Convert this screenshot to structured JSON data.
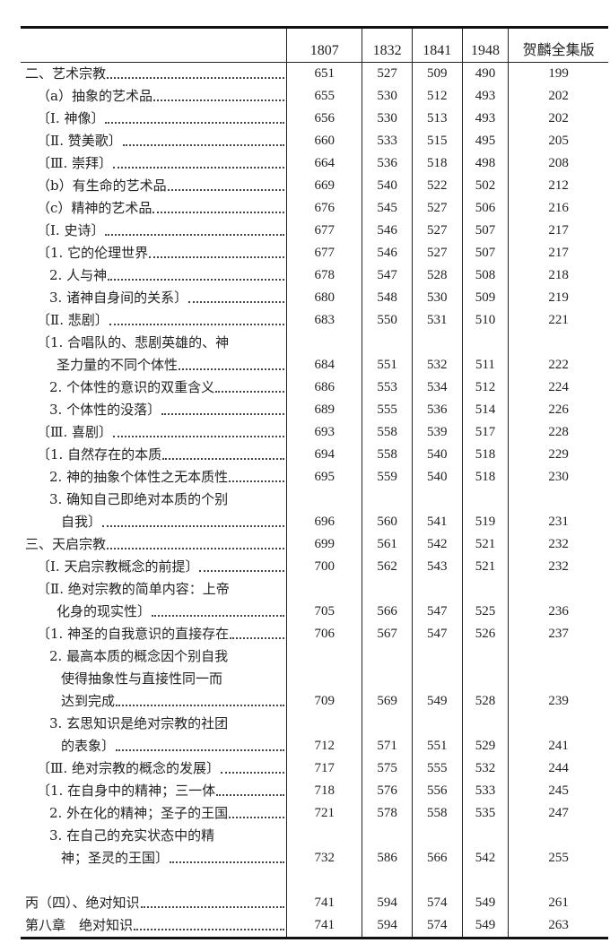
{
  "header": {
    "label_col": "",
    "columns": [
      "1807",
      "1832",
      "1841",
      "1948",
      "贺麟全集版"
    ]
  },
  "rows": [
    {
      "indent": 0,
      "lines": [
        "二、艺术宗教"
      ],
      "values": [
        "651",
        "527",
        "509",
        "490",
        "199"
      ]
    },
    {
      "indent": 1,
      "lines": [
        "（a）抽象的艺术品"
      ],
      "values": [
        "655",
        "530",
        "512",
        "493",
        "202"
      ]
    },
    {
      "indent": 1,
      "lines": [
        "〔Ⅰ. 神像〕"
      ],
      "values": [
        "656",
        "530",
        "513",
        "493",
        "202"
      ]
    },
    {
      "indent": 1,
      "lines": [
        "〔Ⅱ. 赞美歌〕"
      ],
      "values": [
        "660",
        "533",
        "515",
        "495",
        "205"
      ]
    },
    {
      "indent": 1,
      "lines": [
        "〔Ⅲ. 崇拜〕"
      ],
      "values": [
        "664",
        "536",
        "518",
        "498",
        "208"
      ]
    },
    {
      "indent": 1,
      "lines": [
        "（b）有生命的艺术品"
      ],
      "values": [
        "669",
        "540",
        "522",
        "502",
        "212"
      ]
    },
    {
      "indent": 1,
      "lines": [
        "（c）精神的艺术品"
      ],
      "values": [
        "676",
        "545",
        "527",
        "506",
        "216"
      ]
    },
    {
      "indent": 1,
      "lines": [
        "〔Ⅰ. 史诗〕"
      ],
      "values": [
        "677",
        "546",
        "527",
        "507",
        "217"
      ]
    },
    {
      "indent": 1,
      "lines": [
        "〔1. 它的伦理世界"
      ],
      "values": [
        "677",
        "546",
        "527",
        "507",
        "217"
      ]
    },
    {
      "indent": 2,
      "lines": [
        "2. 人与神"
      ],
      "values": [
        "678",
        "547",
        "528",
        "508",
        "218"
      ]
    },
    {
      "indent": 2,
      "lines": [
        "3. 诸神自身间的关系〕"
      ],
      "values": [
        "680",
        "548",
        "530",
        "509",
        "219"
      ]
    },
    {
      "indent": 1,
      "lines": [
        "〔Ⅱ. 悲剧〕"
      ],
      "values": [
        "683",
        "550",
        "531",
        "510",
        "221"
      ]
    },
    {
      "indent": 1,
      "lines": [
        "〔1. 合唱队的、悲剧英雄的、神",
        "圣力量的不同个体性"
      ],
      "values": [
        "684",
        "551",
        "532",
        "511",
        "222"
      ]
    },
    {
      "indent": 2,
      "lines": [
        "2. 个体性的意识的双重含义"
      ],
      "values": [
        "686",
        "553",
        "534",
        "512",
        "224"
      ]
    },
    {
      "indent": 2,
      "lines": [
        "3. 个体性的没落〕"
      ],
      "values": [
        "689",
        "555",
        "536",
        "514",
        "226"
      ]
    },
    {
      "indent": 1,
      "lines": [
        "〔Ⅲ. 喜剧〕"
      ],
      "values": [
        "693",
        "558",
        "539",
        "517",
        "228"
      ]
    },
    {
      "indent": 1,
      "lines": [
        "〔1. 自然存在的本质"
      ],
      "values": [
        "694",
        "558",
        "540",
        "518",
        "229"
      ]
    },
    {
      "indent": 2,
      "lines": [
        "2. 神的抽象个体性之无本质性"
      ],
      "values": [
        "695",
        "559",
        "540",
        "518",
        "230"
      ]
    },
    {
      "indent": 2,
      "lines": [
        "3. 确知自己即绝对本质的个别",
        "自我〕"
      ],
      "values": [
        "696",
        "560",
        "541",
        "519",
        "231"
      ]
    },
    {
      "indent": 0,
      "lines": [
        "三、天启宗教"
      ],
      "values": [
        "699",
        "561",
        "542",
        "521",
        "232"
      ]
    },
    {
      "indent": 1,
      "lines": [
        "〔Ⅰ. 天启宗教概念的前提〕"
      ],
      "values": [
        "700",
        "562",
        "543",
        "521",
        "232"
      ]
    },
    {
      "indent": 1,
      "lines": [
        "〔Ⅱ. 绝对宗教的简单内容：上帝",
        "化身的现实性〕"
      ],
      "values": [
        "705",
        "566",
        "547",
        "525",
        "236"
      ]
    },
    {
      "indent": 1,
      "lines": [
        "〔1. 神圣的自我意识的直接存在"
      ],
      "values": [
        "706",
        "567",
        "547",
        "526",
        "237"
      ]
    },
    {
      "indent": 2,
      "lines": [
        "2. 最高本质的概念因个别自我",
        "使得抽象性与直接性同一而",
        "达到完成"
      ],
      "values": [
        "709",
        "569",
        "549",
        "528",
        "239"
      ]
    },
    {
      "indent": 2,
      "lines": [
        "3. 玄思知识是绝对宗教的社团",
        "的表象〕"
      ],
      "values": [
        "712",
        "571",
        "551",
        "529",
        "241"
      ]
    },
    {
      "indent": 1,
      "lines": [
        "〔Ⅲ. 绝对宗教的概念的发展〕"
      ],
      "values": [
        "717",
        "575",
        "555",
        "532",
        "244"
      ]
    },
    {
      "indent": 1,
      "lines": [
        "〔1. 在自身中的精神；三一体"
      ],
      "values": [
        "718",
        "576",
        "556",
        "533",
        "245"
      ]
    },
    {
      "indent": 2,
      "lines": [
        "2. 外在化的精神；圣子的王国"
      ],
      "values": [
        "721",
        "578",
        "558",
        "535",
        "247"
      ]
    },
    {
      "indent": 2,
      "lines": [
        "3. 在自己的充实状态中的精",
        "神；圣灵的王国〕"
      ],
      "values": [
        "732",
        "586",
        "566",
        "542",
        "255"
      ]
    },
    {
      "gap": true
    },
    {
      "indent": 0,
      "lines": [
        "丙（四）、绝对知识"
      ],
      "values": [
        "741",
        "594",
        "574",
        "549",
        "261"
      ]
    },
    {
      "indent": 0,
      "lines": [
        "第八章　绝对知识"
      ],
      "values": [
        "741",
        "594",
        "574",
        "549",
        "263"
      ]
    }
  ]
}
